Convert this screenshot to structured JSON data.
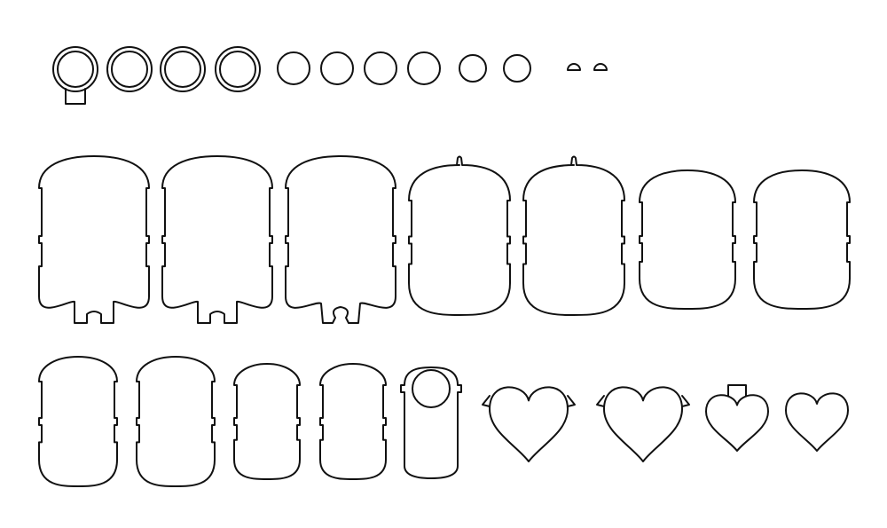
{
  "sheet": {
    "stroke_color": "#111111",
    "background_color": "#ffffff",
    "rows": [
      {
        "name": "row-1",
        "pieces": [
          {
            "type": "ring-with-tab"
          },
          {
            "type": "ring"
          },
          {
            "type": "ring"
          },
          {
            "type": "ring"
          },
          {
            "type": "circle"
          },
          {
            "type": "circle"
          },
          {
            "type": "circle"
          },
          {
            "type": "circle"
          },
          {
            "type": "circle"
          },
          {
            "type": "circle"
          },
          {
            "type": "half-dome"
          },
          {
            "type": "half-dome"
          }
        ]
      },
      {
        "name": "row-2",
        "pieces": [
          {
            "type": "capsule-body-with-two-tabs"
          },
          {
            "type": "capsule-body-with-two-tabs"
          },
          {
            "type": "capsule-body-with-bow-notch"
          },
          {
            "type": "dome-body-with-nub"
          },
          {
            "type": "dome-body-with-nub"
          },
          {
            "type": "dome-body"
          },
          {
            "type": "dome-body"
          }
        ]
      },
      {
        "name": "row-3",
        "pieces": [
          {
            "type": "small-capsule-body"
          },
          {
            "type": "small-capsule-body"
          },
          {
            "type": "narrow-capsule-body"
          },
          {
            "type": "narrow-capsule-body"
          },
          {
            "type": "door-hanger"
          },
          {
            "type": "heart-with-wings"
          },
          {
            "type": "heart-with-wings"
          },
          {
            "type": "heart-with-top-tab"
          },
          {
            "type": "heart"
          }
        ]
      }
    ]
  }
}
